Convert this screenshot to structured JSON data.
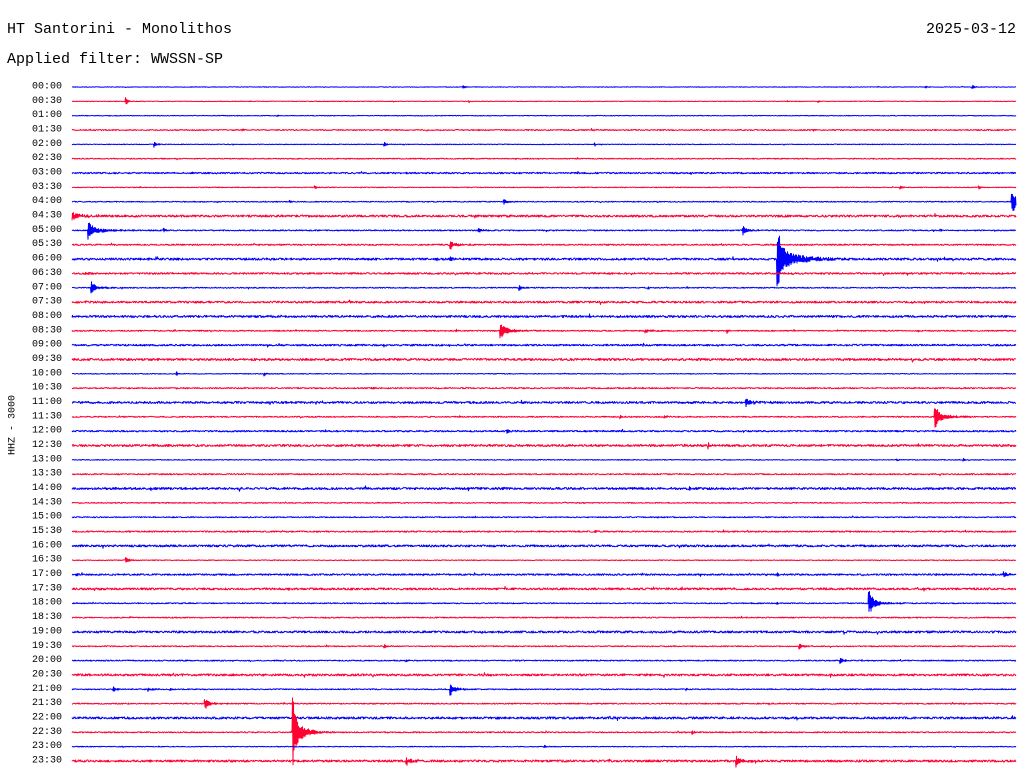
{
  "chart_data": {
    "type": "line",
    "title": "HT Santorini - Monolithos",
    "date": "2025-03-12",
    "subtitle": "Applied filter: WWSSN-SP",
    "ylabel": "HHZ - 3000",
    "colors": [
      "#0000ff",
      "#ff0033"
    ],
    "rows": [
      {
        "label": "00:00",
        "noise": 60,
        "events": [
          {
            "min": 12.4,
            "amp": 420,
            "dur_s": 30
          },
          {
            "min": 27.1,
            "amp": 300,
            "dur_s": 24
          },
          {
            "min": 28.6,
            "amp": 420,
            "dur_s": 30
          }
        ]
      },
      {
        "label": "00:30",
        "noise": 60,
        "events": [
          {
            "min": 1.7,
            "amp": 1000,
            "dur_s": 20
          },
          {
            "min": 12.6,
            "amp": 250,
            "dur_s": 10
          },
          {
            "min": 23.7,
            "amp": 250,
            "dur_s": 10
          }
        ]
      },
      {
        "label": "01:00",
        "noise": 70,
        "events": [
          {
            "min": 6.5,
            "amp": 300,
            "dur_s": 24
          }
        ]
      },
      {
        "label": "01:30",
        "noise": 120,
        "events": [
          {
            "min": 5.4,
            "amp": 250,
            "dur_s": 24
          },
          {
            "min": 16.5,
            "amp": 250,
            "dur_s": 36
          }
        ]
      },
      {
        "label": "02:00",
        "noise": 70,
        "events": [
          {
            "min": 2.6,
            "amp": 800,
            "dur_s": 24
          },
          {
            "min": 9.9,
            "amp": 600,
            "dur_s": 24
          },
          {
            "min": 16.6,
            "amp": 300,
            "dur_s": 10
          }
        ]
      },
      {
        "label": "02:30",
        "noise": 100,
        "events": []
      },
      {
        "label": "03:00",
        "noise": 160,
        "events": []
      },
      {
        "label": "03:30",
        "noise": 80,
        "events": [
          {
            "min": 7.7,
            "amp": 400,
            "dur_s": 24
          },
          {
            "min": 26.3,
            "amp": 500,
            "dur_s": 24
          },
          {
            "min": 28.8,
            "amp": 500,
            "dur_s": 18
          }
        ]
      },
      {
        "label": "04:00",
        "noise": 100,
        "events": [
          {
            "min": 6.9,
            "amp": 250,
            "dur_s": 18
          },
          {
            "min": 13.7,
            "amp": 600,
            "dur_s": 40
          },
          {
            "min": 29.85,
            "amp": 3100,
            "dur_s": 60
          }
        ]
      },
      {
        "label": "04:30",
        "noise": 220,
        "events": []
      },
      {
        "label": "05:00",
        "noise": 120,
        "events": [
          {
            "min": 0.5,
            "amp": 2100,
            "dur_s": 90
          },
          {
            "min": 2.9,
            "amp": 400,
            "dur_s": 18
          },
          {
            "min": 12.9,
            "amp": 400,
            "dur_s": 48
          },
          {
            "min": 21.3,
            "amp": 1000,
            "dur_s": 50
          },
          {
            "min": 27.6,
            "amp": 300,
            "dur_s": 18
          }
        ]
      },
      {
        "label": "05:30",
        "noise": 140,
        "events": [
          {
            "min": 12.0,
            "amp": 1250,
            "dur_s": 50
          }
        ]
      },
      {
        "label": "06:00",
        "noise": 220,
        "events": [
          {
            "min": 12.0,
            "amp": 500,
            "dur_s": 18
          },
          {
            "min": 22.4,
            "amp": 6300,
            "dur_s": 120
          }
        ]
      },
      {
        "label": "06:30",
        "noise": 180,
        "events": [
          {
            "min": 0.4,
            "amp": 400,
            "dur_s": 40
          }
        ]
      },
      {
        "label": "07:00",
        "noise": 110,
        "events": [
          {
            "min": 0.6,
            "amp": 1250,
            "dur_s": 60
          },
          {
            "min": 14.2,
            "amp": 600,
            "dur_s": 36
          },
          {
            "min": 18.3,
            "amp": 300,
            "dur_s": 18
          }
        ]
      },
      {
        "label": "07:30",
        "noise": 200,
        "events": []
      },
      {
        "label": "08:00",
        "noise": 220,
        "events": []
      },
      {
        "label": "08:30",
        "noise": 120,
        "events": [
          {
            "min": 12.2,
            "amp": 300,
            "dur_s": 18
          },
          {
            "min": 13.6,
            "amp": 1700,
            "dur_s": 90
          },
          {
            "min": 18.2,
            "amp": 500,
            "dur_s": 50
          },
          {
            "min": 20.8,
            "amp": 400,
            "dur_s": 24
          }
        ]
      },
      {
        "label": "09:00",
        "noise": 180,
        "events": [
          {
            "min": 9.9,
            "amp": 300,
            "dur_s": 18
          }
        ]
      },
      {
        "label": "09:30",
        "noise": 230,
        "events": []
      },
      {
        "label": "10:00",
        "noise": 80,
        "events": [
          {
            "min": 3.3,
            "amp": 400,
            "dur_s": 24
          },
          {
            "min": 6.1,
            "amp": 400,
            "dur_s": 24
          }
        ]
      },
      {
        "label": "10:30",
        "noise": 130,
        "events": [
          {
            "min": 9.5,
            "amp": 250,
            "dur_s": 30
          }
        ]
      },
      {
        "label": "11:00",
        "noise": 220,
        "events": [
          {
            "min": 21.4,
            "amp": 1050,
            "dur_s": 70
          }
        ]
      },
      {
        "label": "11:30",
        "noise": 120,
        "events": [
          {
            "min": 12.3,
            "amp": 300,
            "dur_s": 18
          },
          {
            "min": 17.4,
            "amp": 400,
            "dur_s": 40
          },
          {
            "min": 18.8,
            "amp": 450,
            "dur_s": 40
          },
          {
            "min": 27.4,
            "amp": 2600,
            "dur_s": 80
          }
        ]
      },
      {
        "label": "12:00",
        "noise": 160,
        "events": [
          {
            "min": 13.8,
            "amp": 400,
            "dur_s": 40
          }
        ]
      },
      {
        "label": "12:30",
        "noise": 220,
        "events": [
          {
            "min": 19.4,
            "amp": 300,
            "dur_s": 18
          },
          {
            "min": 20.2,
            "amp": 800,
            "dur_s": 18
          }
        ]
      },
      {
        "label": "13:00",
        "noise": 80,
        "events": [
          {
            "min": 13.9,
            "amp": 250,
            "dur_s": 18
          },
          {
            "min": 26.2,
            "amp": 250,
            "dur_s": 18
          },
          {
            "min": 28.3,
            "amp": 450,
            "dur_s": 24
          }
        ]
      },
      {
        "label": "13:30",
        "noise": 130,
        "events": [
          {
            "min": 18.5,
            "amp": 250,
            "dur_s": 24
          }
        ]
      },
      {
        "label": "14:00",
        "noise": 230,
        "events": [
          {
            "min": 2.5,
            "amp": 250,
            "dur_s": 10
          },
          {
            "min": 19.6,
            "amp": 300,
            "dur_s": 24
          }
        ]
      },
      {
        "label": "14:30",
        "noise": 100,
        "events": [
          {
            "min": 29.5,
            "amp": 250,
            "dur_s": 18
          }
        ]
      },
      {
        "label": "15:00",
        "noise": 110,
        "events": [
          {
            "min": 12.8,
            "amp": 300,
            "dur_s": 24
          }
        ]
      },
      {
        "label": "15:30",
        "noise": 140,
        "events": [
          {
            "min": 16.6,
            "amp": 350,
            "dur_s": 18
          }
        ]
      },
      {
        "label": "16:00",
        "noise": 210,
        "events": []
      },
      {
        "label": "16:30",
        "noise": 80,
        "events": [
          {
            "min": 1.7,
            "amp": 650,
            "dur_s": 40
          }
        ]
      },
      {
        "label": "17:00",
        "noise": 170,
        "events": [
          {
            "min": 0.1,
            "amp": 500,
            "dur_s": 18
          },
          {
            "min": 22.4,
            "amp": 500,
            "dur_s": 30
          },
          {
            "min": 29.6,
            "amp": 700,
            "dur_s": 40
          }
        ]
      },
      {
        "label": "17:30",
        "noise": 210,
        "events": []
      },
      {
        "label": "18:00",
        "noise": 110,
        "events": [
          {
            "min": 22.4,
            "amp": 300,
            "dur_s": 10
          },
          {
            "min": 25.3,
            "amp": 3300,
            "dur_s": 60
          }
        ]
      },
      {
        "label": "18:30",
        "noise": 110,
        "events": [
          {
            "min": 1.8,
            "amp": 300,
            "dur_s": 18
          }
        ]
      },
      {
        "label": "19:00",
        "noise": 220,
        "events": []
      },
      {
        "label": "19:30",
        "noise": 110,
        "events": [
          {
            "min": 9.9,
            "amp": 600,
            "dur_s": 30
          },
          {
            "min": 23.1,
            "amp": 700,
            "dur_s": 40
          }
        ]
      },
      {
        "label": "20:00",
        "noise": 120,
        "events": [
          {
            "min": 10.6,
            "amp": 500,
            "dur_s": 24
          },
          {
            "min": 24.4,
            "amp": 700,
            "dur_s": 40
          }
        ]
      },
      {
        "label": "20:30",
        "noise": 220,
        "events": []
      },
      {
        "label": "21:00",
        "noise": 110,
        "events": [
          {
            "min": 1.3,
            "amp": 500,
            "dur_s": 40
          },
          {
            "min": 2.4,
            "amp": 450,
            "dur_s": 40
          },
          {
            "min": 3.1,
            "amp": 350,
            "dur_s": 24
          },
          {
            "min": 12.0,
            "amp": 1450,
            "dur_s": 60
          },
          {
            "min": 19.5,
            "amp": 300,
            "dur_s": 18
          }
        ]
      },
      {
        "label": "21:30",
        "noise": 120,
        "events": [
          {
            "min": 4.2,
            "amp": 1450,
            "dur_s": 50
          }
        ]
      },
      {
        "label": "22:00",
        "noise": 230,
        "events": []
      },
      {
        "label": "22:30",
        "noise": 120,
        "events": [
          {
            "min": 7.0,
            "amp": 9000,
            "dur_s": 60
          },
          {
            "min": 19.7,
            "amp": 400,
            "dur_s": 24
          }
        ]
      },
      {
        "label": "23:00",
        "noise": 80,
        "events": [
          {
            "min": 15.0,
            "amp": 400,
            "dur_s": 18
          }
        ]
      },
      {
        "label": "23:30",
        "noise": 220,
        "events": [
          {
            "min": 10.6,
            "amp": 1050,
            "dur_s": 50
          },
          {
            "min": 21.1,
            "amp": 1250,
            "dur_s": 50
          }
        ]
      }
    ]
  }
}
